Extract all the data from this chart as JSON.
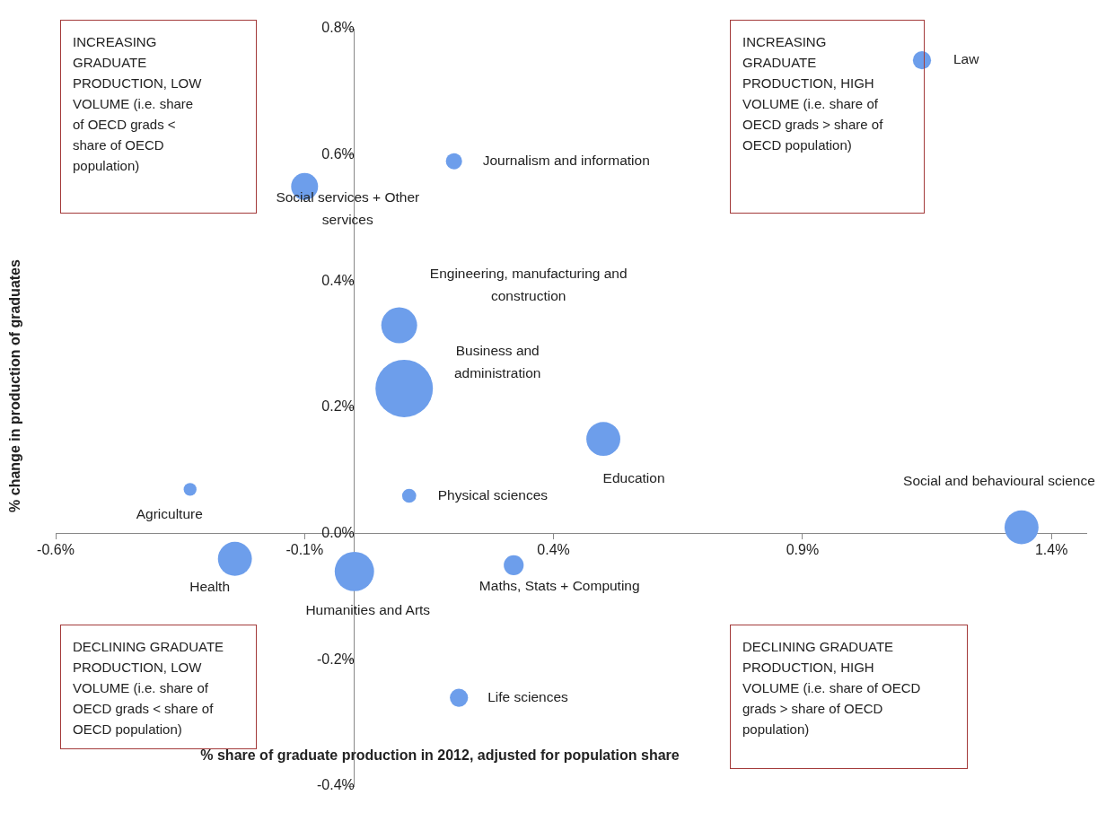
{
  "chart_data": {
    "type": "bubble",
    "xlabel": "% share of graduate production in 2012, adjusted for population share",
    "ylabel": "% change in production of graduates",
    "xlim": [
      -0.6,
      1.47
    ],
    "xticks": [
      {
        "value": -0.6,
        "label": "-0.6%"
      },
      {
        "value": -0.1,
        "label": "-0.1%"
      },
      {
        "value": 0.4,
        "label": "0.4%"
      },
      {
        "value": 0.9,
        "label": "0.9%"
      },
      {
        "value": 1.4,
        "label": "1.4%"
      }
    ],
    "ylim": [
      -0.4,
      0.8
    ],
    "yticks": [
      {
        "value": -0.4,
        "label": "-0.4%"
      },
      {
        "value": -0.2,
        "label": "-0.2%"
      },
      {
        "value": 0,
        "label": "0.0%"
      },
      {
        "value": 0.2,
        "label": "0.2%"
      },
      {
        "value": 0.4,
        "label": "0.4%"
      },
      {
        "value": 0.6,
        "label": "0.6%"
      },
      {
        "value": 0.8,
        "label": "0.8%"
      }
    ],
    "grid": false,
    "legend": false,
    "series": [
      {
        "name": "Law",
        "color": "#6d9eeb",
        "x": [
          1.14
        ],
        "values": [
          0.75
        ],
        "sizes": [
          0.1
        ]
      },
      {
        "name": "Journalism and information",
        "color": "#6d9eeb",
        "x": [
          0.2
        ],
        "values": [
          0.59
        ],
        "sizes": [
          0.08
        ]
      },
      {
        "name": "Social services + Other services",
        "color": "#6d9eeb",
        "x": [
          -0.1
        ],
        "values": [
          0.55
        ],
        "sizes": [
          0.22
        ]
      },
      {
        "name": "Engineering, manufacturing and construction",
        "color": "#6d9eeb",
        "x": [
          0.09
        ],
        "values": [
          0.33
        ],
        "sizes": [
          0.39
        ]
      },
      {
        "name": "Business and administration",
        "color": "#6d9eeb",
        "x": [
          0.1
        ],
        "values": [
          0.23
        ],
        "sizes": [
          1
        ]
      },
      {
        "name": "Education",
        "color": "#6d9eeb",
        "x": [
          0.5
        ],
        "values": [
          0.15
        ],
        "sizes": [
          0.35
        ]
      },
      {
        "name": "Agriculture",
        "color": "#6d9eeb",
        "x": [
          -0.33
        ],
        "values": [
          0.07
        ],
        "sizes": [
          0.05
        ]
      },
      {
        "name": "Physical sciences",
        "color": "#6d9eeb",
        "x": [
          0.11
        ],
        "values": [
          0.06
        ],
        "sizes": [
          0.06
        ]
      },
      {
        "name": "Social and behavioural science",
        "color": "#6d9eeb",
        "x": [
          1.34
        ],
        "values": [
          0.01
        ],
        "sizes": [
          0.35
        ]
      },
      {
        "name": "Health",
        "color": "#6d9eeb",
        "x": [
          -0.24
        ],
        "values": [
          -0.04
        ],
        "sizes": [
          0.35
        ]
      },
      {
        "name": "Humanities and Arts",
        "color": "#6d9eeb",
        "x": [
          0.0
        ],
        "values": [
          -0.06
        ],
        "sizes": [
          0.47
        ]
      },
      {
        "name": "Maths, Stats + Computing",
        "color": "#6d9eeb",
        "x": [
          0.32
        ],
        "values": [
          -0.05
        ],
        "sizes": [
          0.12
        ]
      },
      {
        "name": "Life sciences",
        "color": "#6d9eeb",
        "x": [
          0.21
        ],
        "values": [
          -0.26
        ],
        "sizes": [
          0.1
        ]
      }
    ],
    "annotations": [
      "INCREASING GRADUATE PRODUCTION, LOW VOLUME (i.e. share of OECD grads < share of OECD population)",
      "INCREASING GRADUATE PRODUCTION, HIGH VOLUME (i.e. share of OECD grads > share of OECD population)",
      "DECLINING GRADUATE PRODUCTION, LOW VOLUME (i.e. share of OECD grads < share of OECD population)",
      "DECLINING GRADUATE PRODUCTION, HIGH VOLUME (i.e. share of OECD grads > share of OECD population)"
    ]
  }
}
